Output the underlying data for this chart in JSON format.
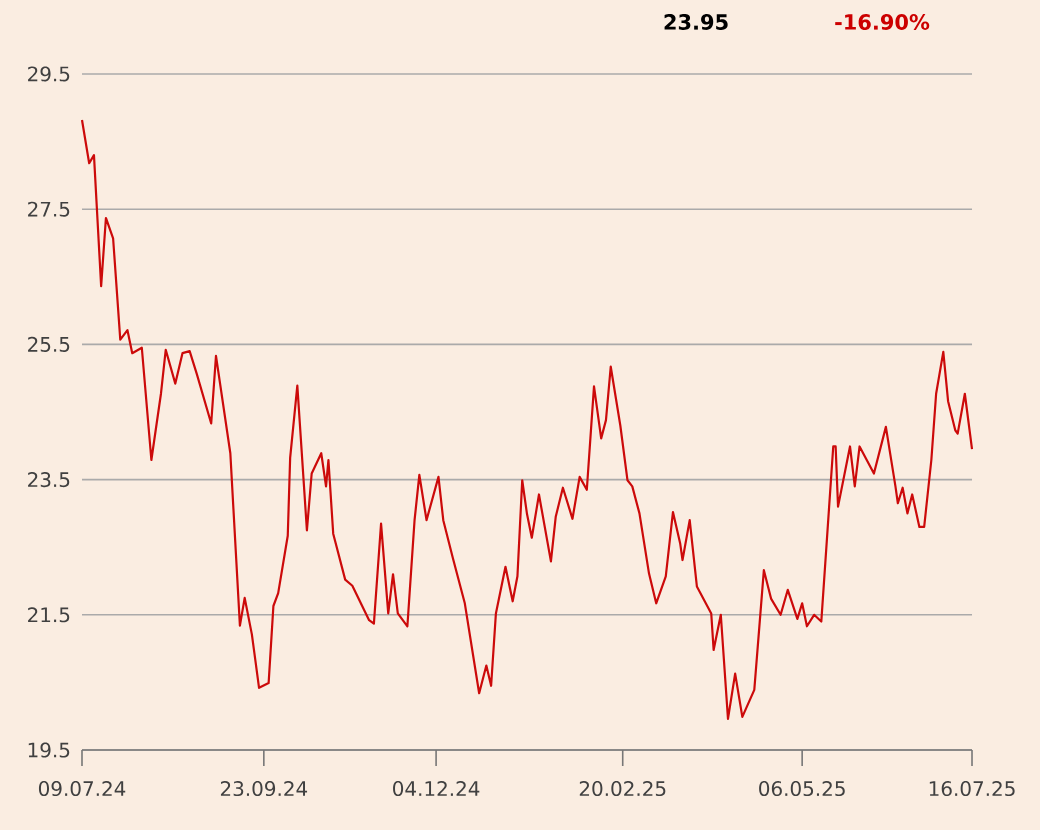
{
  "chart_data": {
    "type": "line",
    "annotations": [
      "23.95",
      "-16.90%"
    ],
    "x": [
      "2024-07-09",
      "2024-07-12",
      "2024-07-14",
      "2024-07-17",
      "2024-07-19",
      "2024-07-22",
      "2024-07-25",
      "2024-07-28",
      "2024-07-30",
      "2024-08-03",
      "2024-08-07",
      "2024-08-11",
      "2024-08-13",
      "2024-08-17",
      "2024-08-20",
      "2024-08-23",
      "2024-08-26",
      "2024-09-01",
      "2024-09-03",
      "2024-09-09",
      "2024-09-13",
      "2024-09-15",
      "2024-09-18",
      "2024-09-21",
      "2024-09-25",
      "2024-09-27",
      "2024-09-29",
      "2024-10-03",
      "2024-10-04",
      "2024-10-07",
      "2024-10-11",
      "2024-10-13",
      "2024-10-17",
      "2024-10-19",
      "2024-10-20",
      "2024-10-22",
      "2024-10-27",
      "2024-10-30",
      "2024-11-06",
      "2024-11-08",
      "2024-11-11",
      "2024-11-14",
      "2024-11-16",
      "2024-11-18",
      "2024-11-22",
      "2024-11-25",
      "2024-11-27",
      "2024-11-30",
      "2024-12-05",
      "2024-12-07",
      "2024-12-11",
      "2024-12-16",
      "2024-12-22",
      "2024-12-25",
      "2024-12-27",
      "2024-12-29",
      "2025-01-02",
      "2025-01-05",
      "2025-01-07",
      "2025-01-09",
      "2025-01-11",
      "2025-01-13",
      "2025-01-16",
      "2025-01-21",
      "2025-01-23",
      "2025-01-26",
      "2025-01-30",
      "2025-02-02",
      "2025-02-05",
      "2025-02-08",
      "2025-02-11",
      "2025-02-13",
      "2025-02-15",
      "2025-02-19",
      "2025-02-22",
      "2025-02-24",
      "2025-02-27",
      "2025-03-03",
      "2025-03-06",
      "2025-03-10",
      "2025-03-13",
      "2025-03-16",
      "2025-03-17",
      "2025-03-20",
      "2025-03-23",
      "2025-03-29",
      "2025-03-30",
      "2025-04-02",
      "2025-04-05",
      "2025-04-08",
      "2025-04-11",
      "2025-04-16",
      "2025-04-20",
      "2025-04-23",
      "2025-04-27",
      "2025-04-30",
      "2025-05-04",
      "2025-05-06",
      "2025-05-08",
      "2025-05-11",
      "2025-05-14",
      "2025-05-19",
      "2025-05-20",
      "2025-05-21",
      "2025-05-26",
      "2025-05-28",
      "2025-05-30",
      "2025-06-02",
      "2025-06-05",
      "2025-06-10",
      "2025-06-14",
      "2025-06-15",
      "2025-06-17",
      "2025-06-19",
      "2025-06-21",
      "2025-06-24",
      "2025-06-26",
      "2025-06-29",
      "2025-07-01",
      "2025-07-04",
      "2025-07-06",
      "2025-07-09",
      "2025-07-10",
      "2025-07-13",
      "2025-07-16"
    ],
    "series": [
      {
        "color": "#cc0a0a",
        "values": [
          28.82,
          28.18,
          28.3,
          26.36,
          27.37,
          27.07,
          25.57,
          25.71,
          25.37,
          25.45,
          23.79,
          24.77,
          25.42,
          24.92,
          25.37,
          25.4,
          25.06,
          24.33,
          25.33,
          23.89,
          21.34,
          21.75,
          21.21,
          20.42,
          20.49,
          21.63,
          21.82,
          22.67,
          23.82,
          24.89,
          22.75,
          23.59,
          23.89,
          23.4,
          23.79,
          22.7,
          22.02,
          21.93,
          21.42,
          21.37,
          22.85,
          21.52,
          22.1,
          21.52,
          21.33,
          22.9,
          23.57,
          22.9,
          23.54,
          22.9,
          22.34,
          21.67,
          20.34,
          20.75,
          20.45,
          21.52,
          22.21,
          21.7,
          22.07,
          23.49,
          22.99,
          22.64,
          23.28,
          22.29,
          22.95,
          23.38,
          22.92,
          23.54,
          23.35,
          24.88,
          24.11,
          24.38,
          25.17,
          24.3,
          23.49,
          23.4,
          23.0,
          22.11,
          21.67,
          22.07,
          23.02,
          22.56,
          22.31,
          22.9,
          21.92,
          21.52,
          20.98,
          21.5,
          19.96,
          20.63,
          19.99,
          20.39,
          22.16,
          21.74,
          21.5,
          21.87,
          21.44,
          21.67,
          21.33,
          21.5,
          21.4,
          23.99,
          23.99,
          23.1,
          23.99,
          23.4,
          23.99,
          23.79,
          23.59,
          24.28,
          23.4,
          23.15,
          23.38,
          23.0,
          23.28,
          22.8,
          22.8,
          23.79,
          24.77,
          25.39,
          24.66,
          24.23,
          24.18,
          24.77,
          23.95
        ]
      }
    ],
    "xlim": [
      "2024-07-09",
      "2025-07-16"
    ],
    "xticks": [
      {
        "value": "2024-07-09",
        "label": "09.07.24"
      },
      {
        "value": "2024-09-23",
        "label": "23.09.24"
      },
      {
        "value": "2024-12-04",
        "label": "04.12.24"
      },
      {
        "value": "2025-02-20",
        "label": "20.02.25"
      },
      {
        "value": "2025-05-06",
        "label": "06.05.25"
      },
      {
        "value": "2025-07-16",
        "label": "16.07.25"
      }
    ],
    "ylim": [
      19.5,
      29.5
    ],
    "yticks": [
      19.5,
      21.5,
      23.5,
      25.5,
      27.5,
      29.5
    ],
    "grid": "y",
    "marker": "none",
    "line_style": "solid"
  }
}
